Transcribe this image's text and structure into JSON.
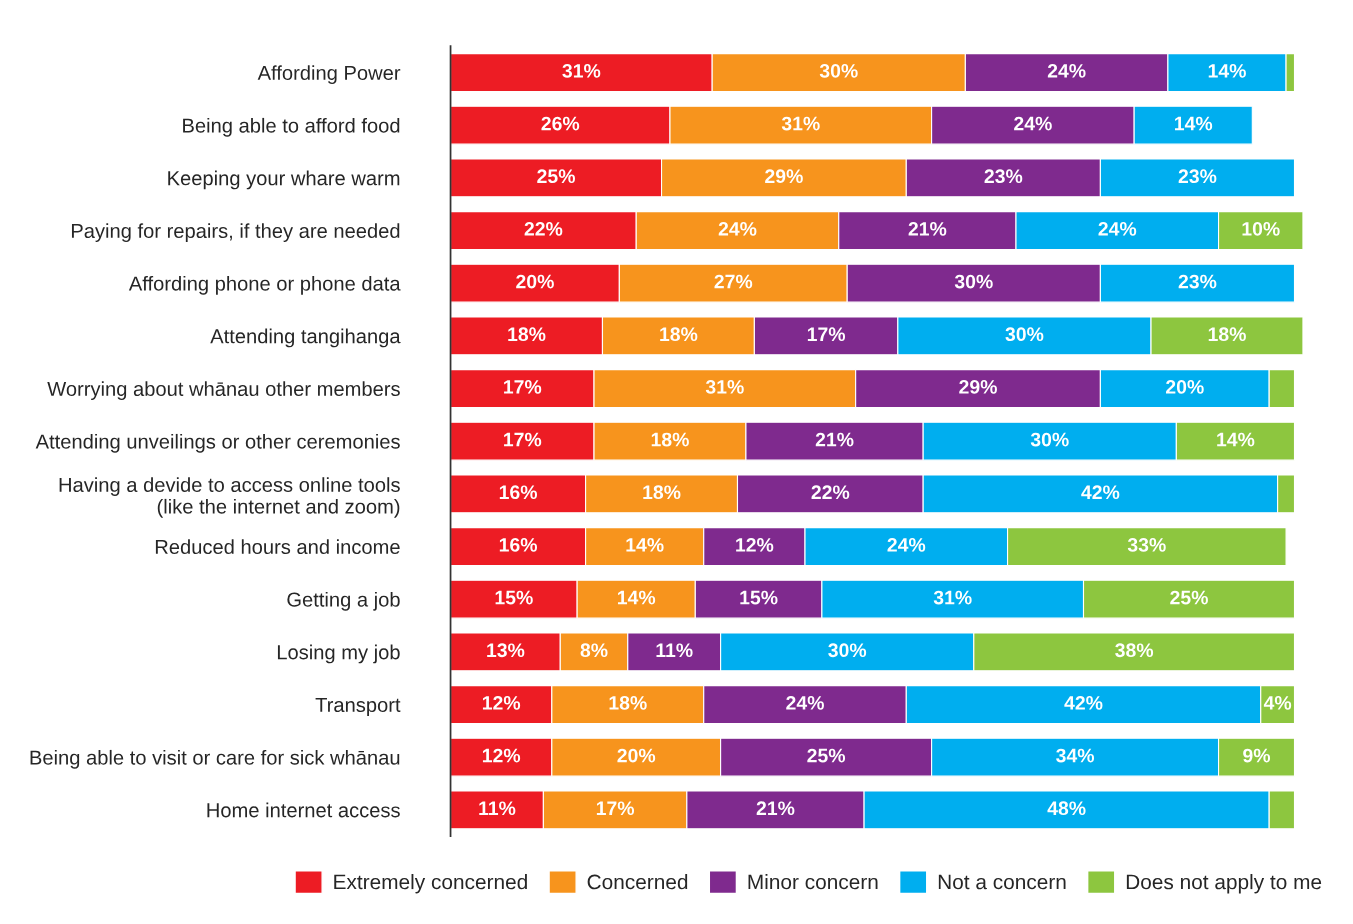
{
  "chart_data": {
    "type": "bar",
    "orientation": "horizontal",
    "stacked": true,
    "legend": "bottom",
    "tick_labels": "y",
    "grid": false,
    "categories": [
      "Affording Power",
      "Being able to afford food",
      "Keeping your whare warm",
      "Paying for repairs, if they are needed",
      "Affording phone or phone data",
      "Attending tangihanga",
      "Worrying about whānau other members",
      "Attending unveilings or other ceremonies",
      "Having a devide to access online tools\n(like the internet and zoom)",
      "Reduced hours and income",
      "Getting a job",
      "Losing my job",
      "Transport",
      "Being able to visit or care for sick whānau",
      "Home internet access"
    ],
    "series": [
      {
        "name": "Extremely concerned",
        "color": "#ed1c24",
        "values": [
          31,
          26,
          25,
          22,
          20,
          18,
          17,
          17,
          16,
          16,
          15,
          13,
          12,
          12,
          11
        ],
        "value_labels": [
          "31%",
          "26%",
          "25%",
          "22%",
          "20%",
          "18%",
          "17%",
          "17%",
          "16%",
          "16%",
          "15%",
          "13%",
          "12%",
          "12%",
          "11%"
        ]
      },
      {
        "name": "Concerned",
        "color": "#f7941d",
        "values": [
          30,
          31,
          29,
          24,
          27,
          18,
          31,
          18,
          18,
          14,
          14,
          8,
          18,
          20,
          17
        ],
        "value_labels": [
          "30%",
          "31%",
          "29%",
          "24%",
          "27%",
          "18%",
          "31%",
          "18%",
          "18%",
          "14%",
          "14%",
          "8%",
          "18%",
          "20%",
          "17%"
        ]
      },
      {
        "name": "Minor concern",
        "color": "#7f2a8e",
        "values": [
          24,
          24,
          23,
          21,
          30,
          17,
          29,
          21,
          22,
          12,
          15,
          11,
          24,
          25,
          21
        ],
        "value_labels": [
          "24%",
          "24%",
          "23%",
          "21%",
          "30%",
          "17%",
          "29%",
          "21%",
          "22%",
          "12%",
          "15%",
          "11%",
          "24%",
          "25%",
          "21%"
        ]
      },
      {
        "name": "Not a concern",
        "color": "#00aeef",
        "values": [
          14,
          14,
          23,
          24,
          23,
          30,
          20,
          30,
          42,
          24,
          31,
          30,
          42,
          34,
          48
        ],
        "value_labels": [
          "14%",
          "14%",
          "23%",
          "24%",
          "23%",
          "30%",
          "20%",
          "30%",
          "42%",
          "24%",
          "31%",
          "30%",
          "42%",
          "34%",
          "48%"
        ]
      },
      {
        "name": "Does not apply to me",
        "color": "#8dc63f",
        "values": [
          1,
          null,
          null,
          10,
          null,
          18,
          3,
          14,
          2,
          33,
          25,
          38,
          4,
          9,
          3
        ],
        "value_labels": [
          null,
          null,
          null,
          "10%",
          null,
          "18%",
          null,
          "14%",
          null,
          "33%",
          "25%",
          "38%",
          "4%",
          "9%",
          null
        ]
      }
    ]
  }
}
